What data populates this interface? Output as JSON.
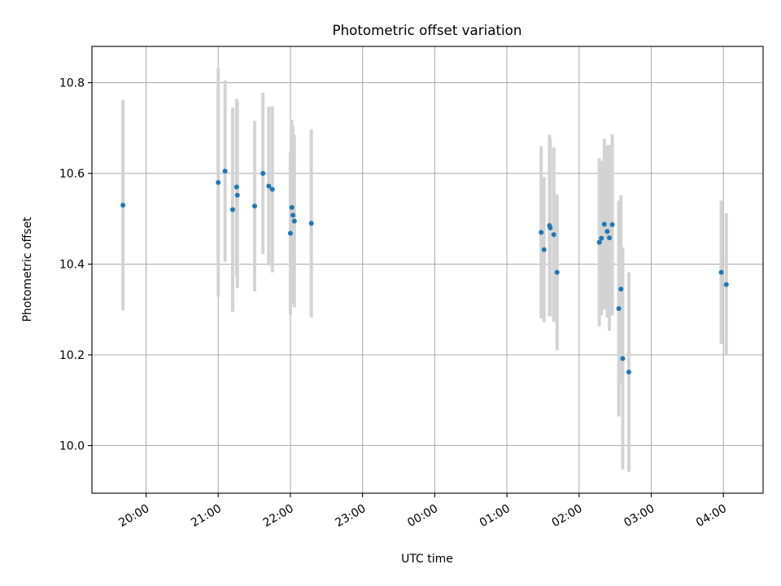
{
  "chart_data": {
    "type": "scatter",
    "title": "Photometric offset variation",
    "xlabel": "UTC time",
    "ylabel": "Photometric offset",
    "x_unit": "hours since 19:00 UTC (values > 5 are after midnight)",
    "xlim": [
      0.25,
      9.55
    ],
    "ylim": [
      9.895,
      10.88
    ],
    "x_ticks": [
      {
        "value": 1,
        "label": "20:00"
      },
      {
        "value": 2,
        "label": "21:00"
      },
      {
        "value": 3,
        "label": "22:00"
      },
      {
        "value": 4,
        "label": "23:00"
      },
      {
        "value": 5,
        "label": "00:00"
      },
      {
        "value": 6,
        "label": "01:00"
      },
      {
        "value": 7,
        "label": "02:00"
      },
      {
        "value": 8,
        "label": "03:00"
      },
      {
        "value": 9,
        "label": "04:00"
      }
    ],
    "y_ticks": [
      {
        "value": 10.0,
        "label": "10.0"
      },
      {
        "value": 10.2,
        "label": "10.2"
      },
      {
        "value": 10.4,
        "label": "10.4"
      },
      {
        "value": 10.6,
        "label": "10.6"
      },
      {
        "value": 10.8,
        "label": "10.8"
      }
    ],
    "grid": true,
    "colors": {
      "point": "#1f77b4",
      "errorbar": "#d3d3d3",
      "grid": "#b0b0b0",
      "axes": "#000000"
    },
    "points": [
      {
        "x": 0.68,
        "y": 10.53,
        "yerr": 0.232
      },
      {
        "x": 2.0,
        "y": 10.58,
        "yerr": 0.252
      },
      {
        "x": 2.095,
        "y": 10.605,
        "yerr": 0.2
      },
      {
        "x": 2.2,
        "y": 10.52,
        "yerr": 0.225
      },
      {
        "x": 2.255,
        "y": 10.57,
        "yerr": 0.195
      },
      {
        "x": 2.265,
        "y": 10.552,
        "yerr": 0.205
      },
      {
        "x": 2.505,
        "y": 10.528,
        "yerr": 0.188
      },
      {
        "x": 2.62,
        "y": 10.6,
        "yerr": 0.178
      },
      {
        "x": 2.7,
        "y": 10.572,
        "yerr": 0.175
      },
      {
        "x": 2.75,
        "y": 10.565,
        "yerr": 0.183
      },
      {
        "x": 3.0,
        "y": 10.468,
        "yerr": 0.18
      },
      {
        "x": 3.02,
        "y": 10.525,
        "yerr": 0.193
      },
      {
        "x": 3.035,
        "y": 10.508,
        "yerr": 0.197
      },
      {
        "x": 3.055,
        "y": 10.495,
        "yerr": 0.19
      },
      {
        "x": 3.29,
        "y": 10.49,
        "yerr": 0.207
      },
      {
        "x": 6.475,
        "y": 10.47,
        "yerr": 0.19
      },
      {
        "x": 6.515,
        "y": 10.432,
        "yerr": 0.16
      },
      {
        "x": 6.59,
        "y": 10.485,
        "yerr": 0.2
      },
      {
        "x": 6.6,
        "y": 10.48,
        "yerr": 0.195
      },
      {
        "x": 6.65,
        "y": 10.465,
        "yerr": 0.192
      },
      {
        "x": 6.695,
        "y": 10.382,
        "yerr": 0.172
      },
      {
        "x": 7.28,
        "y": 10.448,
        "yerr": 0.185
      },
      {
        "x": 7.31,
        "y": 10.457,
        "yerr": 0.17
      },
      {
        "x": 7.35,
        "y": 10.488,
        "yerr": 0.188
      },
      {
        "x": 7.39,
        "y": 10.472,
        "yerr": 0.19
      },
      {
        "x": 7.42,
        "y": 10.458,
        "yerr": 0.205
      },
      {
        "x": 7.46,
        "y": 10.487,
        "yerr": 0.2
      },
      {
        "x": 7.55,
        "y": 10.302,
        "yerr": 0.238
      },
      {
        "x": 7.58,
        "y": 10.345,
        "yerr": 0.207
      },
      {
        "x": 7.605,
        "y": 10.192,
        "yerr": 0.245
      },
      {
        "x": 7.69,
        "y": 10.162,
        "yerr": 0.22
      },
      {
        "x": 8.97,
        "y": 10.382,
        "yerr": 0.158
      },
      {
        "x": 9.04,
        "y": 10.355,
        "yerr": 0.157
      }
    ]
  }
}
